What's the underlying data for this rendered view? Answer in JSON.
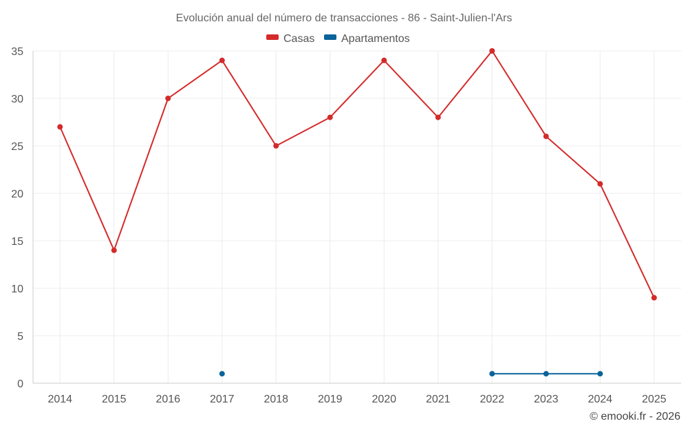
{
  "chart_data": {
    "type": "line",
    "title": "Evolución anual del número de transacciones - 86 - Saint-Julien-l'Ars",
    "categories": [
      "2014",
      "2015",
      "2016",
      "2017",
      "2018",
      "2019",
      "2020",
      "2021",
      "2022",
      "2023",
      "2024",
      "2025"
    ],
    "series": [
      {
        "name": "Casas",
        "color": "#d42a2a",
        "values": [
          27,
          14,
          30,
          34,
          25,
          28,
          34,
          28,
          35,
          26,
          21,
          9
        ]
      },
      {
        "name": "Apartamentos",
        "color": "#0a6399",
        "values": [
          null,
          null,
          null,
          1,
          null,
          null,
          null,
          null,
          1,
          1,
          1,
          null
        ]
      }
    ],
    "ylim": [
      0,
      35
    ],
    "yticks": [
      0,
      5,
      10,
      15,
      20,
      25,
      30,
      35
    ],
    "grid": true,
    "legend": "top-center",
    "credit": "© emooki.fr - 2026"
  }
}
